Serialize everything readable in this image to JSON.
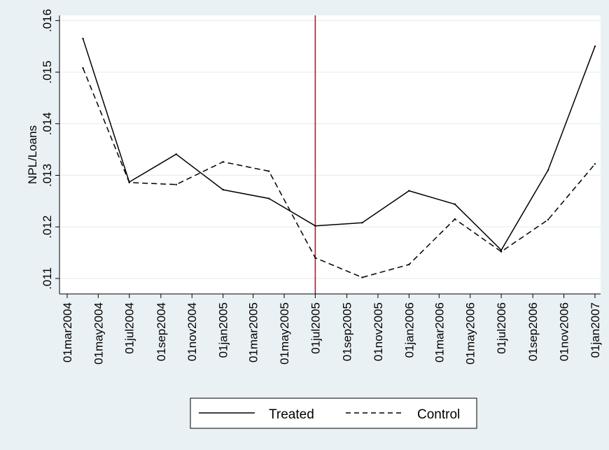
{
  "chart_data": {
    "type": "line",
    "ylabel": "NPL/Loans",
    "xlabel": "",
    "ylim": [
      0.0107,
      0.0161
    ],
    "y_ticks": [
      0.011,
      0.012,
      0.013,
      0.014,
      0.015,
      0.016
    ],
    "y_tick_labels": [
      ".011",
      ".012",
      ".013",
      ".014",
      ".015",
      ".016"
    ],
    "x_ticks": [
      "2004-03-01",
      "2004-05-01",
      "2004-07-01",
      "2004-09-01",
      "2004-11-01",
      "2005-01-01",
      "2005-03-01",
      "2005-05-01",
      "2005-07-01",
      "2005-09-01",
      "2005-11-01",
      "2006-01-01",
      "2006-03-01",
      "2006-05-01",
      "2006-07-01",
      "2006-09-01",
      "2006-11-01",
      "2007-01-01"
    ],
    "x_tick_labels": [
      "01mar2004",
      "01may2004",
      "01jul2004",
      "01sep2004",
      "01nov2004",
      "01jan2005",
      "01mar2005",
      "01may2005",
      "01jul2005",
      "01sep2005",
      "01nov2005",
      "01jan2006",
      "01mar2006",
      "01may2006",
      "01jul2006",
      "01sep2006",
      "01nov2006",
      "01jan2007"
    ],
    "xlim": [
      "2004-02-15",
      "2007-01-12"
    ],
    "vertical_line": {
      "x": "2005-07-01",
      "color": "#c8102e"
    },
    "grid": "horizontal",
    "legend_position": "bottom",
    "series": [
      {
        "name": "Treated",
        "style": "solid",
        "color": "#000000",
        "x": [
          "2004-04-01",
          "2004-07-01",
          "2004-10-01",
          "2005-01-01",
          "2005-04-01",
          "2005-07-01",
          "2005-10-01",
          "2006-01-01",
          "2006-04-01",
          "2006-07-01",
          "2006-10-01",
          "2007-01-01"
        ],
        "values": [
          0.01565,
          0.01287,
          0.01341,
          0.01272,
          0.01255,
          0.01202,
          0.01208,
          0.0127,
          0.01244,
          0.01155,
          0.0131,
          0.0155
        ]
      },
      {
        "name": "Control",
        "style": "dashed",
        "color": "#000000",
        "x": [
          "2004-04-01",
          "2004-07-01",
          "2004-10-01",
          "2005-01-01",
          "2005-04-01",
          "2005-07-01",
          "2005-10-01",
          "2006-01-01",
          "2006-04-01",
          "2006-07-01",
          "2006-10-01",
          "2007-01-01"
        ],
        "values": [
          0.01508,
          0.01286,
          0.01282,
          0.01326,
          0.01308,
          0.0114,
          0.01102,
          0.01127,
          0.01215,
          0.01152,
          0.01214,
          0.01322
        ]
      }
    ]
  }
}
